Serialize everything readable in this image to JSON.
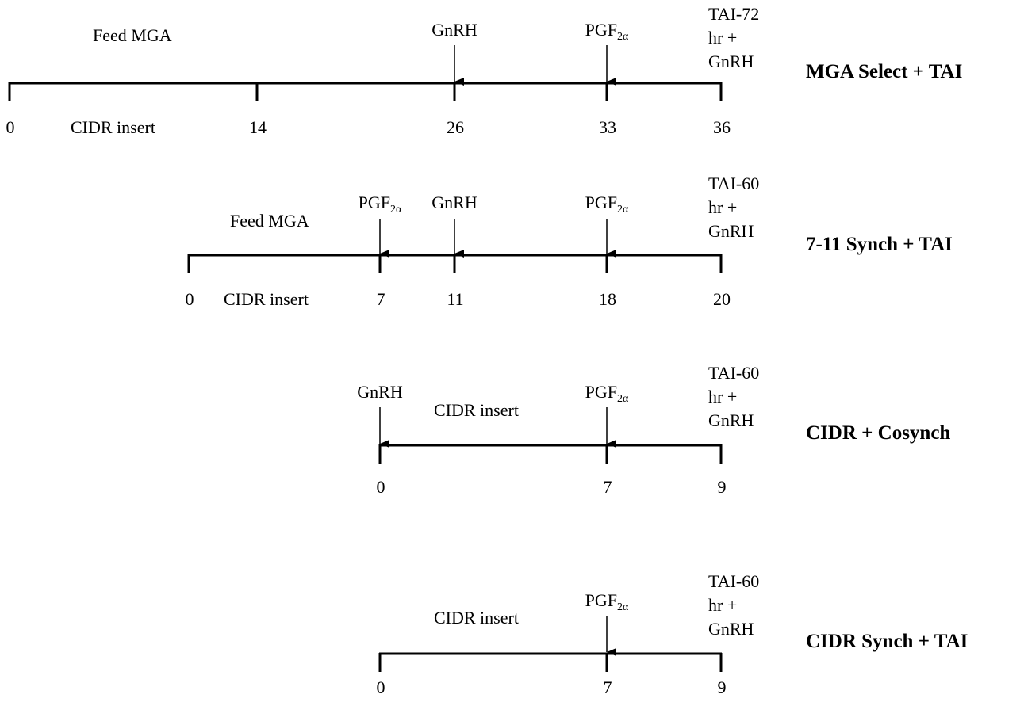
{
  "protocols": [
    {
      "title": "MGA Select + TAI",
      "period_labels": [
        "Feed MGA",
        "CIDR insert"
      ],
      "days": [
        "0",
        "14",
        "26",
        "33",
        "36"
      ],
      "events": [
        "GnRH",
        "PGF"
      ],
      "final_event": [
        "TAI-72",
        "hr +",
        "GnRH"
      ]
    },
    {
      "title": "7-11 Synch + TAI",
      "period_labels": [
        "Feed MGA",
        "CIDR insert"
      ],
      "days": [
        "0",
        "7",
        "11",
        "18",
        "20"
      ],
      "events": [
        "PGF",
        "GnRH",
        "PGF"
      ],
      "final_event": [
        "TAI-60",
        "hr +",
        "GnRH"
      ]
    },
    {
      "title": "CIDR + Cosynch",
      "period_labels": [
        "CIDR insert"
      ],
      "days": [
        "0",
        "7",
        "9"
      ],
      "events": [
        "GnRH",
        "PGF"
      ],
      "final_event": [
        "TAI-60",
        "hr +",
        "GnRH"
      ]
    },
    {
      "title": "CIDR Synch + TAI",
      "period_labels": [
        "CIDR insert"
      ],
      "days": [
        "0",
        "7",
        "9"
      ],
      "events": [
        "PGF"
      ],
      "final_event": [
        "TAI-60",
        "hr +",
        "GnRH"
      ]
    }
  ],
  "pgf_subscript": "2α"
}
